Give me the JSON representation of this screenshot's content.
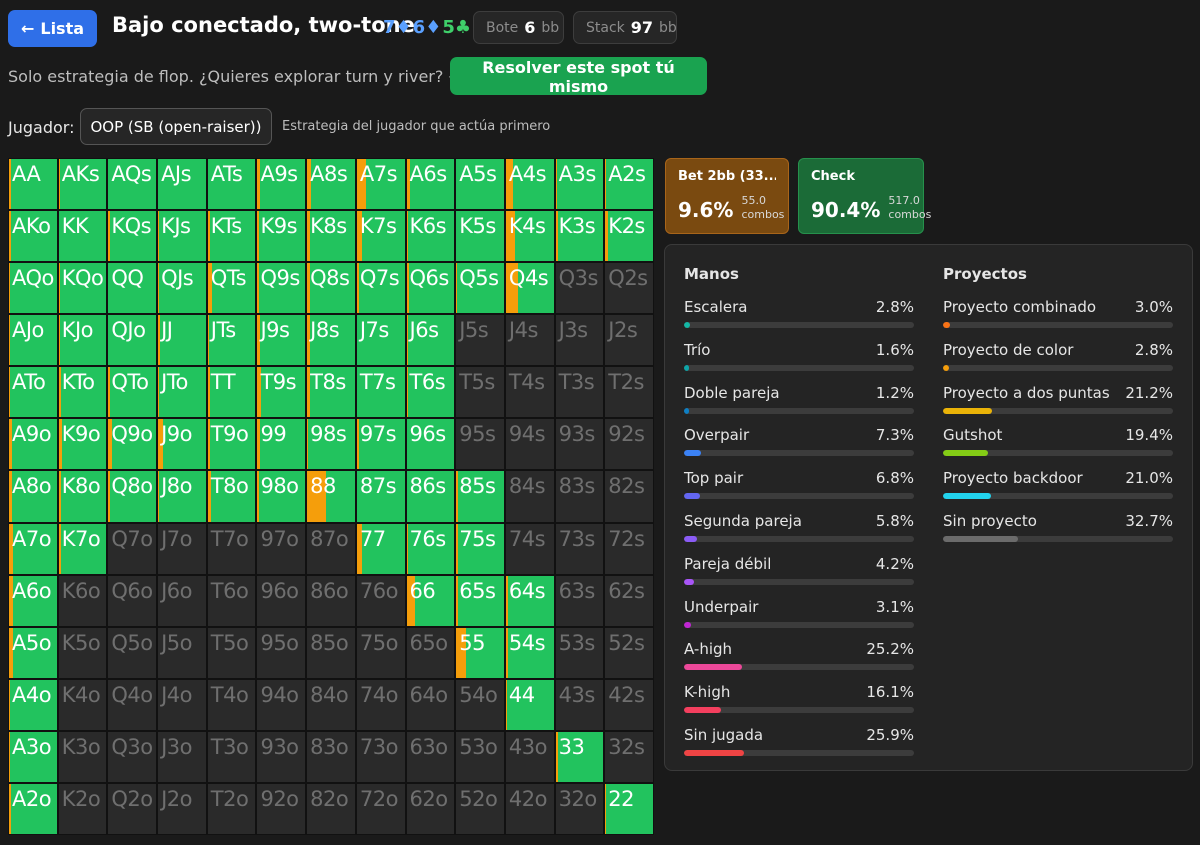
{
  "header": {
    "back_label": "Lista",
    "back_arrow": "←",
    "title": "Bajo conectado, two-tone",
    "board": [
      {
        "text": "7♦",
        "color": "#5aa0ff"
      },
      {
        "text": "6♦",
        "color": "#5aa0ff"
      },
      {
        "text": "5♣",
        "color": "#3fcf6a"
      }
    ],
    "pot_label": "Bote",
    "pot_value": "6",
    "pot_unit": "bb",
    "stack_label": "Stack",
    "stack_value": "97",
    "stack_unit": "bb"
  },
  "subline": {
    "text": "Solo estrategia de flop. ¿Quieres explorar turn y river? →",
    "solve_label": "Resolver este spot tú mismo"
  },
  "player": {
    "label": "Jugador:",
    "selected": "OOP (SB (open-raiser))",
    "description": "Estrategia del jugador que actúa primero"
  },
  "actions": [
    {
      "name": "Bet 2bb (33...",
      "pct": "9.6%",
      "combos_value": "55.0",
      "combos_label": "combos"
    },
    {
      "name": "Check",
      "pct": "90.4%",
      "combos_value": "517.0",
      "combos_label": "combos"
    }
  ],
  "colors": {
    "check": "#22c35e",
    "bet": "#f59e0b",
    "off": "#2a2a2a"
  },
  "grid": {
    "labels": [
      [
        "AA",
        "AKs",
        "AQs",
        "AJs",
        "ATs",
        "A9s",
        "A8s",
        "A7s",
        "A6s",
        "A5s",
        "A4s",
        "A3s",
        "A2s"
      ],
      [
        "AKo",
        "KK",
        "KQs",
        "KJs",
        "KTs",
        "K9s",
        "K8s",
        "K7s",
        "K6s",
        "K5s",
        "K4s",
        "K3s",
        "K2s"
      ],
      [
        "AQo",
        "KQo",
        "QQ",
        "QJs",
        "QTs",
        "Q9s",
        "Q8s",
        "Q7s",
        "Q6s",
        "Q5s",
        "Q4s",
        "Q3s",
        "Q2s"
      ],
      [
        "AJo",
        "KJo",
        "QJo",
        "JJ",
        "JTs",
        "J9s",
        "J8s",
        "J7s",
        "J6s",
        "J5s",
        "J4s",
        "J3s",
        "J2s"
      ],
      [
        "ATo",
        "KTo",
        "QTo",
        "JTo",
        "TT",
        "T9s",
        "T8s",
        "T7s",
        "T6s",
        "T5s",
        "T4s",
        "T3s",
        "T2s"
      ],
      [
        "A9o",
        "K9o",
        "Q9o",
        "J9o",
        "T9o",
        "99",
        "98s",
        "97s",
        "96s",
        "95s",
        "94s",
        "93s",
        "92s"
      ],
      [
        "A8o",
        "K8o",
        "Q8o",
        "J8o",
        "T8o",
        "98o",
        "88",
        "87s",
        "86s",
        "85s",
        "84s",
        "83s",
        "82s"
      ],
      [
        "A7o",
        "K7o",
        "Q7o",
        "J7o",
        "T7o",
        "97o",
        "87o",
        "77",
        "76s",
        "75s",
        "74s",
        "73s",
        "72s"
      ],
      [
        "A6o",
        "K6o",
        "Q6o",
        "J6o",
        "T6o",
        "96o",
        "86o",
        "76o",
        "66",
        "65s",
        "64s",
        "63s",
        "62s"
      ],
      [
        "A5o",
        "K5o",
        "Q5o",
        "J5o",
        "T5o",
        "95o",
        "85o",
        "75o",
        "65o",
        "55",
        "54s",
        "53s",
        "52s"
      ],
      [
        "A4o",
        "K4o",
        "Q4o",
        "J4o",
        "T4o",
        "94o",
        "84o",
        "74o",
        "64o",
        "54o",
        "44",
        "43s",
        "42s"
      ],
      [
        "A3o",
        "K3o",
        "Q3o",
        "J3o",
        "T3o",
        "93o",
        "83o",
        "73o",
        "63o",
        "53o",
        "43o",
        "33",
        "32s"
      ],
      [
        "A2o",
        "K2o",
        "Q2o",
        "J2o",
        "T2o",
        "92o",
        "82o",
        "72o",
        "62o",
        "52o",
        "42o",
        "32o",
        "22"
      ]
    ],
    "bet_fraction": [
      [
        0.05,
        0.02,
        0,
        0,
        0,
        0.05,
        0.08,
        0.2,
        0.08,
        0,
        0.15,
        0.02,
        0.02
      ],
      [
        0.04,
        0,
        0.04,
        0.02,
        0.05,
        0.03,
        0.05,
        0.1,
        0.04,
        0,
        0.2,
        0.06,
        0.05
      ],
      [
        0.03,
        0.02,
        0,
        0.03,
        0.08,
        0.04,
        0.05,
        0.05,
        0.05,
        0.02,
        0.25,
        null,
        null
      ],
      [
        0.03,
        0.03,
        0,
        0.05,
        0.03,
        0.05,
        0.06,
        0,
        0.02,
        null,
        null,
        null,
        null
      ],
      [
        0.03,
        0.04,
        0.03,
        0.02,
        0.05,
        0.07,
        0.06,
        0,
        0.02,
        null,
        null,
        null,
        null
      ],
      [
        0.07,
        0.07,
        0.07,
        0.1,
        0.04,
        0.05,
        0.02,
        0.04,
        0,
        null,
        null,
        null,
        null
      ],
      [
        0.06,
        0.05,
        0.04,
        0.03,
        0.07,
        0.04,
        0.4,
        0,
        0,
        0.04,
        null,
        null,
        null
      ],
      [
        0.08,
        0.04,
        null,
        null,
        null,
        null,
        null,
        0.1,
        0.04,
        0.03,
        null,
        null,
        null
      ],
      [
        0.08,
        null,
        null,
        null,
        null,
        null,
        null,
        null,
        0.18,
        0.03,
        0.05,
        null,
        null
      ],
      [
        0.08,
        null,
        null,
        null,
        null,
        null,
        null,
        null,
        null,
        0.2,
        0.05,
        null,
        null
      ],
      [
        0.03,
        null,
        null,
        null,
        null,
        null,
        null,
        null,
        null,
        null,
        0.03,
        null,
        null
      ],
      [
        0.03,
        null,
        null,
        null,
        null,
        null,
        null,
        null,
        null,
        null,
        null,
        0.06,
        null
      ],
      [
        0.04,
        null,
        null,
        null,
        null,
        null,
        null,
        null,
        null,
        null,
        null,
        null,
        0.02
      ]
    ]
  },
  "manos": {
    "title": "Manos",
    "items": [
      {
        "label": "Escalera",
        "value": "2.8%",
        "pct": 2.8,
        "color": "#14b8a6"
      },
      {
        "label": "Trío",
        "value": "1.6%",
        "pct": 1.6,
        "color": "#0ea5a8"
      },
      {
        "label": "Doble pareja",
        "value": "1.2%",
        "pct": 1.2,
        "color": "#0e7fc4"
      },
      {
        "label": "Overpair",
        "value": "7.3%",
        "pct": 7.3,
        "color": "#3b82f6"
      },
      {
        "label": "Top pair",
        "value": "6.8%",
        "pct": 6.8,
        "color": "#6366f1"
      },
      {
        "label": "Segunda pareja",
        "value": "5.8%",
        "pct": 5.8,
        "color": "#8b5cf6"
      },
      {
        "label": "Pareja débil",
        "value": "4.2%",
        "pct": 4.2,
        "color": "#a855f7"
      },
      {
        "label": "Underpair",
        "value": "3.1%",
        "pct": 3.1,
        "color": "#c026d3"
      },
      {
        "label": "A-high",
        "value": "25.2%",
        "pct": 25.2,
        "color": "#ec4899"
      },
      {
        "label": "K-high",
        "value": "16.1%",
        "pct": 16.1,
        "color": "#f43f5e"
      },
      {
        "label": "Sin jugada",
        "value": "25.9%",
        "pct": 25.9,
        "color": "#ef4444"
      }
    ]
  },
  "proyectos": {
    "title": "Proyectos",
    "items": [
      {
        "label": "Proyecto combinado",
        "value": "3.0%",
        "pct": 3.0,
        "color": "#f97316"
      },
      {
        "label": "Proyecto de color",
        "value": "2.8%",
        "pct": 2.8,
        "color": "#f59e0b"
      },
      {
        "label": "Proyecto a dos puntas",
        "value": "21.2%",
        "pct": 21.2,
        "color": "#eab308"
      },
      {
        "label": "Gutshot",
        "value": "19.4%",
        "pct": 19.4,
        "color": "#84cc16"
      },
      {
        "label": "Proyecto backdoor",
        "value": "21.0%",
        "pct": 21.0,
        "color": "#22d3ee"
      },
      {
        "label": "Sin proyecto",
        "value": "32.7%",
        "pct": 32.7,
        "color": "#6b6b6b"
      }
    ]
  }
}
